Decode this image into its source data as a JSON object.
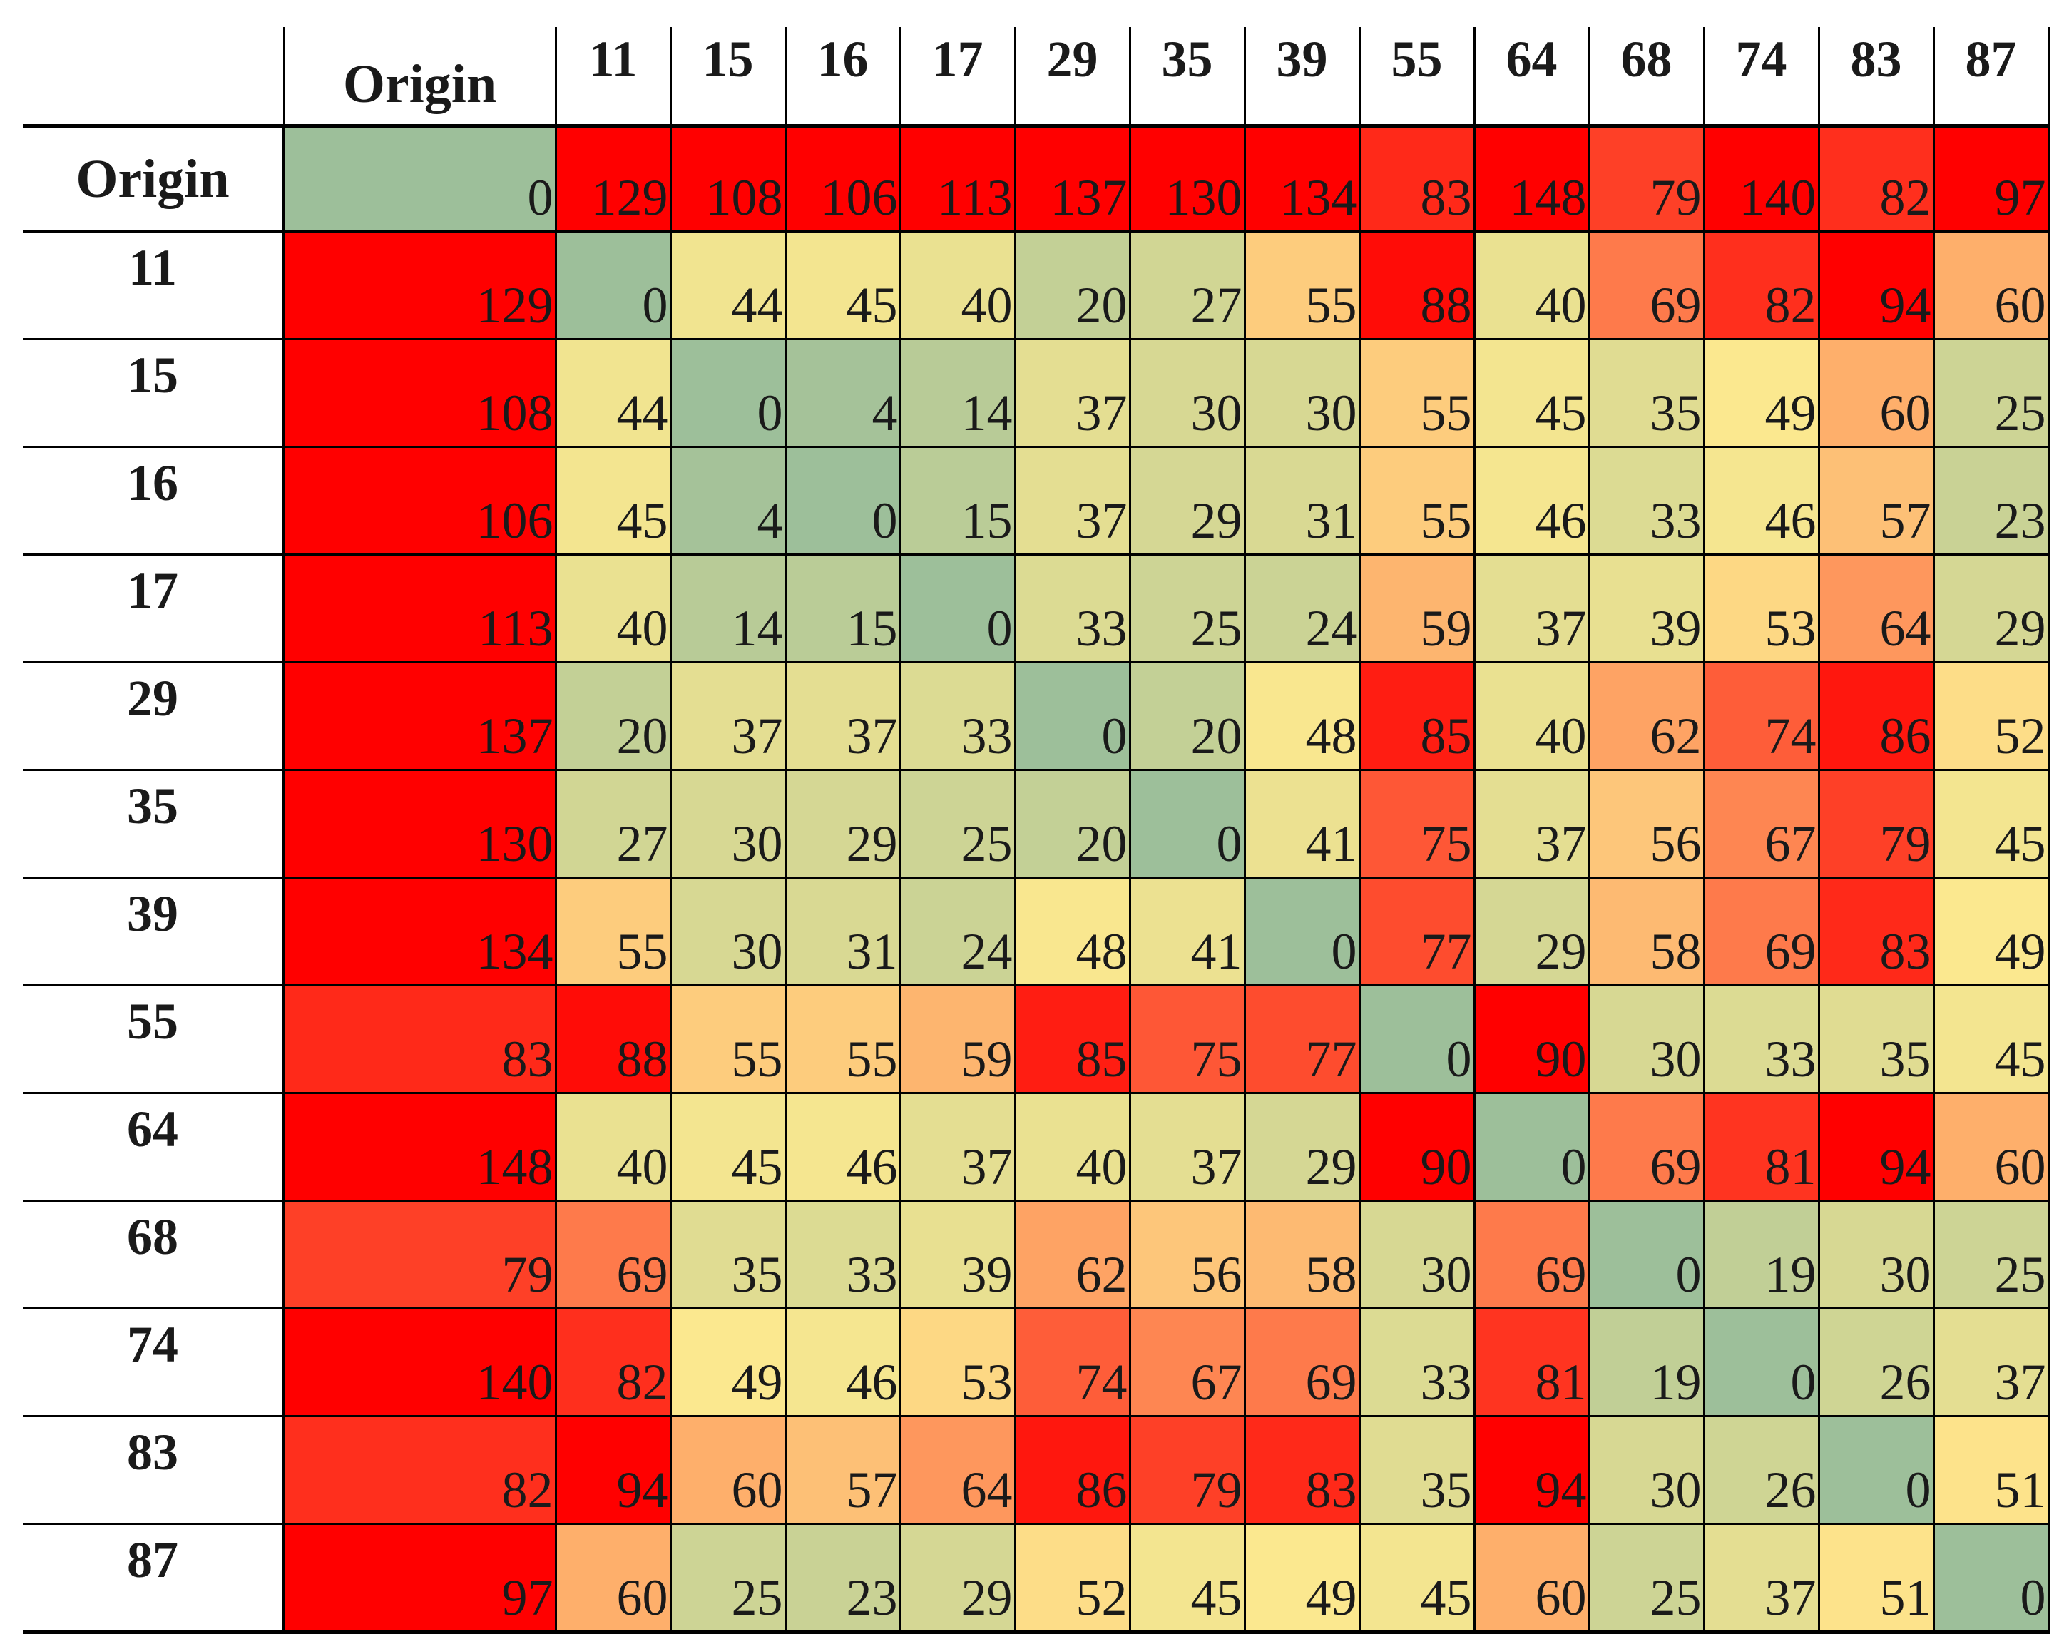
{
  "chart_data": {
    "type": "heatmap",
    "title": "",
    "corner_label": "",
    "columns": [
      "Origin",
      "11",
      "15",
      "16",
      "17",
      "29",
      "35",
      "39",
      "55",
      "64",
      "68",
      "74",
      "83",
      "87"
    ],
    "rows": [
      "Origin",
      "11",
      "15",
      "16",
      "17",
      "29",
      "35",
      "39",
      "55",
      "64",
      "68",
      "74",
      "83",
      "87"
    ],
    "values": [
      [
        0,
        129,
        108,
        106,
        113,
        137,
        130,
        134,
        83,
        148,
        79,
        140,
        82,
        97
      ],
      [
        129,
        0,
        44,
        45,
        40,
        20,
        27,
        55,
        88,
        40,
        69,
        82,
        94,
        60
      ],
      [
        108,
        44,
        0,
        4,
        14,
        37,
        30,
        30,
        55,
        45,
        35,
        49,
        60,
        25
      ],
      [
        106,
        45,
        4,
        0,
        15,
        37,
        29,
        31,
        55,
        46,
        33,
        46,
        57,
        23
      ],
      [
        113,
        40,
        14,
        15,
        0,
        33,
        25,
        24,
        59,
        37,
        39,
        53,
        64,
        29
      ],
      [
        137,
        20,
        37,
        37,
        33,
        0,
        20,
        48,
        85,
        40,
        62,
        74,
        86,
        52
      ],
      [
        130,
        27,
        30,
        29,
        25,
        20,
        0,
        41,
        75,
        37,
        56,
        67,
        79,
        45
      ],
      [
        134,
        55,
        30,
        31,
        24,
        48,
        41,
        0,
        77,
        29,
        58,
        69,
        83,
        49
      ],
      [
        83,
        88,
        55,
        55,
        59,
        85,
        75,
        77,
        0,
        90,
        30,
        33,
        35,
        45
      ],
      [
        148,
        40,
        45,
        46,
        37,
        40,
        37,
        29,
        90,
        0,
        69,
        81,
        94,
        60
      ],
      [
        79,
        69,
        35,
        33,
        39,
        62,
        56,
        58,
        30,
        69,
        0,
        19,
        30,
        25
      ],
      [
        140,
        82,
        49,
        46,
        53,
        74,
        67,
        69,
        33,
        81,
        19,
        0,
        26,
        37
      ],
      [
        82,
        94,
        60,
        57,
        64,
        86,
        79,
        83,
        35,
        94,
        30,
        26,
        0,
        51
      ],
      [
        97,
        60,
        25,
        23,
        29,
        52,
        45,
        49,
        45,
        60,
        25,
        37,
        51,
        0
      ]
    ],
    "color_scale": {
      "low": "#9dbf9a",
      "mid": "#fde98f",
      "high": "#ff0000",
      "mid_value": 50,
      "high_value": 90
    }
  }
}
